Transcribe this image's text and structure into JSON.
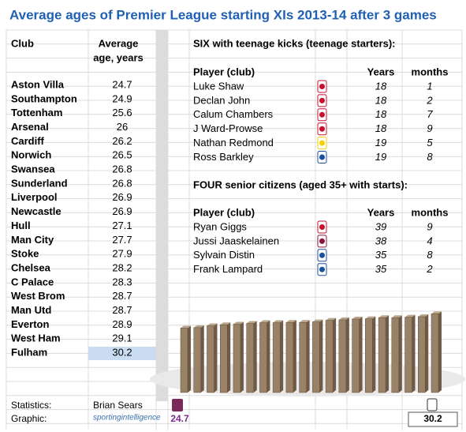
{
  "title": "Average ages of Premier League starting XIs 2013-14 after 3 games",
  "table": {
    "header": {
      "club": "Club",
      "age_line1": "Average",
      "age_line2": "age, years"
    },
    "rows": [
      {
        "club": "Aston Villa",
        "age": 24.7
      },
      {
        "club": "Southampton",
        "age": 24.9
      },
      {
        "club": "Tottenham",
        "age": 25.6
      },
      {
        "club": "Arsenal",
        "age": 26
      },
      {
        "club": "Cardiff",
        "age": 26.2
      },
      {
        "club": "Norwich",
        "age": 26.5
      },
      {
        "club": "Swansea",
        "age": 26.8
      },
      {
        "club": "Sunderland",
        "age": 26.8
      },
      {
        "club": "Liverpool",
        "age": 26.9
      },
      {
        "club": "Newcastle",
        "age": 26.9
      },
      {
        "club": "Hull",
        "age": 27.1
      },
      {
        "club": "Man City",
        "age": 27.7
      },
      {
        "club": "Stoke",
        "age": 27.9
      },
      {
        "club": "Chelsea",
        "age": 28.2
      },
      {
        "club": "C Palace",
        "age": 28.3
      },
      {
        "club": "West Brom",
        "age": 28.7
      },
      {
        "club": "Man Utd",
        "age": 28.7
      },
      {
        "club": "Everton",
        "age": 28.9
      },
      {
        "club": "West Ham",
        "age": 29.1
      },
      {
        "club": "Fulham",
        "age": 30.2
      }
    ]
  },
  "teenagers": {
    "title": "SIX with teenage kicks (teenage starters):",
    "header": {
      "player": "Player (club)",
      "years": "Years",
      "months": "months"
    },
    "rows": [
      {
        "player": "Luke Shaw",
        "years": 18,
        "months": 1
      },
      {
        "player": "Declan John",
        "years": 18,
        "months": 2
      },
      {
        "player": "Calum Chambers",
        "years": 18,
        "months": 7
      },
      {
        "player": "J Ward-Prowse",
        "years": 18,
        "months": 9
      },
      {
        "player": "Nathan Redmond",
        "years": 19,
        "months": 5
      },
      {
        "player": "Ross Barkley",
        "years": 19,
        "months": 8
      }
    ]
  },
  "seniors": {
    "title": "FOUR senior citizens (aged 35+ with starts):",
    "header": {
      "player": "Player (club)",
      "years": "Years",
      "months": "months"
    },
    "rows": [
      {
        "player": "Ryan Giggs",
        "years": 39,
        "months": 9
      },
      {
        "player": "Jussi Jaaskelainen",
        "years": 38,
        "months": 4
      },
      {
        "player": "Sylvain Distin",
        "years": 35,
        "months": 8
      },
      {
        "player": "Frank Lampard",
        "years": 35,
        "months": 2
      }
    ]
  },
  "chart": {
    "first_label": "24.7",
    "last_label": "30.2"
  },
  "footer": {
    "statistics_label": "Statistics:",
    "statistics_name": "Brian Sears",
    "graphic_label": "Graphic:",
    "graphic_logo": "sportingintelligence"
  }
}
